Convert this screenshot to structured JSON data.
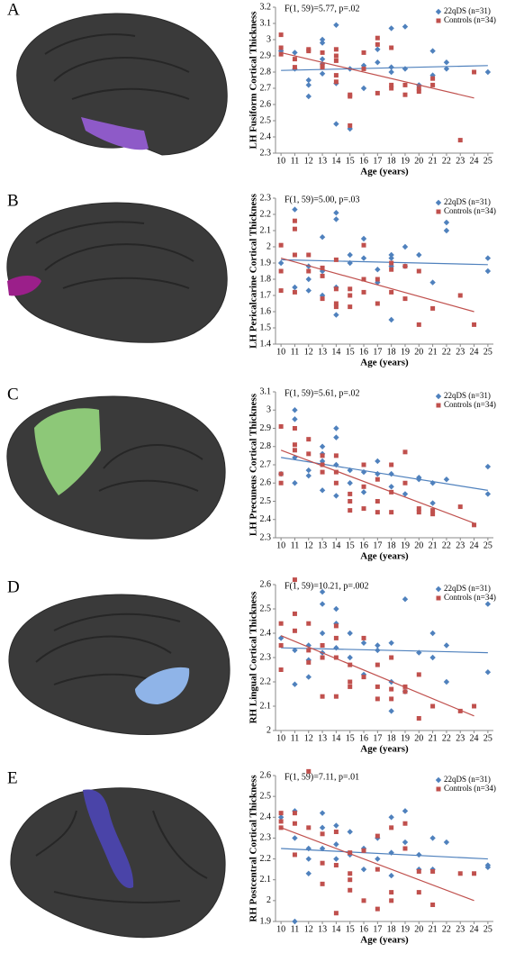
{
  "chart_data": [
    {
      "type": "scatter",
      "panel": "A",
      "annotation": "F(1, 59)=5.77, p=.02",
      "ylabel": "LH Fusiform Cortical Thickness",
      "xlabel": "Age (years)",
      "xlim": [
        9.6,
        25.4
      ],
      "xticks": [
        10,
        11,
        12,
        13,
        14,
        15,
        16,
        17,
        18,
        19,
        20,
        21,
        22,
        23,
        24,
        25
      ],
      "ylim": [
        2.3,
        3.2
      ],
      "yticks": [
        2.3,
        2.4,
        2.5,
        2.6,
        2.7,
        2.8,
        2.9,
        3,
        3.1,
        3.2
      ],
      "legend": "top-right",
      "series": [
        {
          "name": "22qDS (n=31)",
          "color": "#4f81bd",
          "marker": "diamond",
          "x": [
            10,
            11,
            11,
            12,
            12,
            12,
            13,
            13,
            13,
            13,
            14,
            14,
            14,
            15,
            15,
            16,
            16,
            17,
            17,
            18,
            18,
            18,
            19,
            19,
            20,
            21,
            21,
            22,
            22,
            25,
            13
          ],
          "values": [
            2.93,
            2.82,
            2.92,
            2.72,
            2.65,
            2.75,
            2.98,
            3.0,
            2.88,
            2.85,
            3.09,
            2.73,
            2.48,
            2.45,
            2.82,
            2.7,
            2.84,
            2.94,
            2.86,
            3.07,
            2.83,
            2.8,
            3.08,
            2.82,
            2.72,
            2.93,
            2.78,
            2.86,
            2.82,
            2.8,
            2.79
          ],
          "trend": {
            "x": [
              10,
              25
            ],
            "values": [
              2.81,
              2.84
            ]
          }
        },
        {
          "name": "Controls (n=34)",
          "color": "#c0504d",
          "marker": "square",
          "x": [
            10,
            10,
            10,
            11,
            11,
            12,
            12,
            13,
            13,
            13,
            14,
            14,
            14,
            14,
            15,
            15,
            15,
            16,
            16,
            17,
            17,
            17,
            18,
            18,
            18,
            19,
            19,
            20,
            20,
            21,
            21,
            23,
            24,
            14
          ],
          "values": [
            3.03,
            2.95,
            2.91,
            2.88,
            2.83,
            2.94,
            2.93,
            2.84,
            2.92,
            2.83,
            2.94,
            2.87,
            2.78,
            2.74,
            2.47,
            2.65,
            2.66,
            2.82,
            2.92,
            3.01,
            2.97,
            2.67,
            2.95,
            2.72,
            2.7,
            2.66,
            2.72,
            2.7,
            2.68,
            2.76,
            2.72,
            2.38,
            2.8,
            2.9
          ],
          "trend": {
            "x": [
              10,
              24
            ],
            "values": [
              2.92,
              2.64
            ]
          }
        }
      ]
    },
    {
      "type": "scatter",
      "panel": "B",
      "annotation": "F(1, 59)=5.00, p=.03",
      "ylabel": "LH Pericalcarine Cortical Thickness",
      "xlabel": "Age (years)",
      "xlim": [
        9.6,
        25.4
      ],
      "xticks": [
        10,
        11,
        12,
        13,
        14,
        15,
        16,
        17,
        18,
        19,
        20,
        21,
        22,
        23,
        24,
        25
      ],
      "ylim": [
        1.4,
        2.3
      ],
      "yticks": [
        1.4,
        1.5,
        1.6,
        1.7,
        1.8,
        1.9,
        2,
        2.1,
        2.2,
        2.3
      ],
      "legend": "top-right",
      "series": [
        {
          "name": "22qDS (n=31)",
          "color": "#4f81bd",
          "marker": "diamond",
          "x": [
            10,
            11,
            11,
            12,
            12,
            12,
            13,
            13,
            13,
            14,
            14,
            14,
            14,
            15,
            15,
            16,
            16,
            17,
            17,
            18,
            18,
            18,
            18,
            19,
            19,
            20,
            21,
            22,
            22,
            25,
            25
          ],
          "values": [
            1.9,
            2.23,
            1.75,
            1.88,
            1.8,
            1.73,
            2.06,
            1.85,
            1.7,
            2.21,
            2.17,
            1.58,
            1.75,
            1.95,
            1.9,
            2.05,
            1.93,
            1.86,
            1.78,
            1.95,
            1.93,
            1.55,
            1.88,
            2.0,
            1.88,
            1.95,
            1.78,
            2.15,
            2.1,
            1.93,
            1.85
          ],
          "trend": {
            "x": [
              10,
              25
            ],
            "values": [
              1.92,
              1.89
            ]
          }
        },
        {
          "name": "Controls (n=34)",
          "color": "#c0504d",
          "marker": "square",
          "x": [
            10,
            10,
            10,
            11,
            11,
            11,
            11,
            12,
            12,
            13,
            13,
            13,
            14,
            14,
            14,
            14,
            15,
            15,
            15,
            16,
            16,
            16,
            17,
            17,
            18,
            18,
            18,
            19,
            19,
            20,
            20,
            21,
            23,
            24
          ],
          "values": [
            2.01,
            1.85,
            1.73,
            2.16,
            2.11,
            1.95,
            1.72,
            1.95,
            1.85,
            1.87,
            1.82,
            1.68,
            1.92,
            1.65,
            1.63,
            1.74,
            1.74,
            1.7,
            1.63,
            2.01,
            1.8,
            1.72,
            1.8,
            1.65,
            1.9,
            1.86,
            1.72,
            1.88,
            1.68,
            1.85,
            1.52,
            1.62,
            1.7,
            1.52
          ],
          "trend": {
            "x": [
              10,
              24
            ],
            "values": [
              1.93,
              1.6
            ]
          }
        }
      ]
    },
    {
      "type": "scatter",
      "panel": "C",
      "annotation": "F(1, 59)=5.61, p=.02",
      "ylabel": "LH Precuneus Cortical Thickness",
      "xlabel": "Age (years)",
      "xlim": [
        9.6,
        25.4
      ],
      "xticks": [
        10,
        11,
        12,
        13,
        14,
        15,
        16,
        17,
        18,
        19,
        20,
        21,
        22,
        23,
        24,
        25
      ],
      "ylim": [
        2.3,
        3.1
      ],
      "yticks": [
        2.3,
        2.4,
        2.5,
        2.6,
        2.7,
        2.8,
        2.9,
        3,
        3.1
      ],
      "legend": "top-right",
      "series": [
        {
          "name": "22qDS (n=31)",
          "color": "#4f81bd",
          "marker": "diamond",
          "x": [
            10,
            11,
            11,
            11,
            11,
            12,
            12,
            13,
            13,
            13,
            14,
            14,
            14,
            14,
            15,
            15,
            16,
            16,
            17,
            17,
            18,
            18,
            19,
            20,
            20,
            21,
            21,
            22,
            25,
            25,
            13
          ],
          "values": [
            2.65,
            3.0,
            2.95,
            2.74,
            2.6,
            2.67,
            2.64,
            2.8,
            2.76,
            2.72,
            2.9,
            2.85,
            2.7,
            2.53,
            2.67,
            2.6,
            2.66,
            2.55,
            2.72,
            2.65,
            2.65,
            2.58,
            2.54,
            2.63,
            2.62,
            2.6,
            2.49,
            2.62,
            2.69,
            2.54,
            2.56
          ],
          "trend": {
            "x": [
              10,
              25
            ],
            "values": [
              2.74,
              2.56
            ]
          }
        },
        {
          "name": "Controls (n=34)",
          "color": "#c0504d",
          "marker": "square",
          "x": [
            10,
            10,
            10,
            11,
            11,
            11,
            12,
            12,
            13,
            13,
            13,
            14,
            14,
            14,
            15,
            15,
            15,
            16,
            16,
            17,
            17,
            17,
            18,
            18,
            18,
            19,
            19,
            20,
            20,
            21,
            21,
            23,
            24,
            16
          ],
          "values": [
            2.91,
            2.65,
            2.6,
            2.9,
            2.81,
            2.78,
            2.84,
            2.76,
            2.75,
            2.7,
            2.66,
            2.75,
            2.66,
            2.6,
            2.54,
            2.45,
            2.5,
            2.7,
            2.46,
            2.62,
            2.5,
            2.44,
            2.7,
            2.55,
            2.44,
            2.77,
            2.6,
            2.46,
            2.44,
            2.45,
            2.43,
            2.47,
            2.37,
            2.58
          ],
          "trend": {
            "x": [
              10,
              24
            ],
            "values": [
              2.78,
              2.38
            ]
          }
        }
      ]
    },
    {
      "type": "scatter",
      "panel": "D",
      "annotation": "F(1, 59)=10.21, p=.002",
      "ylabel": "RH Lingual Cortical Thickness",
      "xlabel": "Age (years)",
      "xlim": [
        9.6,
        25.4
      ],
      "xticks": [
        10,
        11,
        12,
        13,
        14,
        15,
        16,
        17,
        18,
        19,
        20,
        21,
        22,
        23,
        24,
        25
      ],
      "ylim": [
        2,
        2.6
      ],
      "yticks": [
        2,
        2.1,
        2.2,
        2.3,
        2.4,
        2.5,
        2.6
      ],
      "legend": "top-right",
      "series": [
        {
          "name": "22qDS (n=31)",
          "color": "#4f81bd",
          "marker": "diamond",
          "x": [
            10,
            11,
            11,
            12,
            12,
            12,
            13,
            13,
            13,
            13,
            14,
            14,
            14,
            15,
            15,
            16,
            16,
            17,
            17,
            18,
            18,
            18,
            19,
            19,
            20,
            21,
            21,
            22,
            22,
            25,
            25
          ],
          "values": [
            2.38,
            2.33,
            2.19,
            2.35,
            2.29,
            2.22,
            2.57,
            2.52,
            2.4,
            2.32,
            2.5,
            2.44,
            2.34,
            2.4,
            2.3,
            2.23,
            2.36,
            2.35,
            2.33,
            2.36,
            2.2,
            2.08,
            2.54,
            2.16,
            2.32,
            2.4,
            2.3,
            2.35,
            2.2,
            2.52,
            2.24
          ],
          "trend": {
            "x": [
              10,
              25
            ],
            "values": [
              2.34,
              2.32
            ]
          }
        },
        {
          "name": "Controls (n=34)",
          "color": "#c0504d",
          "marker": "square",
          "x": [
            10,
            10,
            10,
            11,
            11,
            11,
            12,
            12,
            12,
            13,
            13,
            13,
            14,
            14,
            14,
            14,
            15,
            15,
            15,
            16,
            16,
            17,
            17,
            17,
            18,
            18,
            18,
            19,
            19,
            20,
            20,
            21,
            23,
            24
          ],
          "values": [
            2.44,
            2.35,
            2.25,
            2.62,
            2.48,
            2.41,
            2.44,
            2.33,
            2.28,
            2.35,
            2.3,
            2.14,
            2.43,
            2.38,
            2.3,
            2.14,
            2.27,
            2.2,
            2.18,
            2.38,
            2.22,
            2.27,
            2.18,
            2.13,
            2.3,
            2.17,
            2.13,
            2.18,
            2.16,
            2.23,
            2.05,
            2.1,
            2.08,
            2.1
          ],
          "trend": {
            "x": [
              10,
              24
            ],
            "values": [
              2.39,
              2.06
            ]
          }
        }
      ]
    },
    {
      "type": "scatter",
      "panel": "E",
      "annotation": "F(1, 59)=7.11, p=.01",
      "ylabel": "RH Postcentral Cortical Thickness",
      "xlabel": "Age (years)",
      "xlim": [
        9.6,
        25.4
      ],
      "xticks": [
        10,
        11,
        12,
        13,
        14,
        15,
        16,
        17,
        18,
        19,
        20,
        21,
        22,
        23,
        24,
        25
      ],
      "ylim": [
        1.9,
        2.6
      ],
      "yticks": [
        1.9,
        2,
        2.1,
        2.2,
        2.3,
        2.4,
        2.5,
        2.6
      ],
      "legend": "top-right",
      "series": [
        {
          "name": "22qDS (n=31)",
          "color": "#4f81bd",
          "marker": "diamond",
          "x": [
            10,
            11,
            11,
            11,
            12,
            12,
            12,
            13,
            13,
            13,
            14,
            14,
            14,
            15,
            15,
            16,
            16,
            17,
            17,
            18,
            18,
            18,
            19,
            19,
            20,
            20,
            21,
            21,
            22,
            25,
            25
          ],
          "values": [
            2.4,
            2.43,
            1.9,
            2.3,
            2.25,
            2.2,
            2.13,
            2.42,
            2.35,
            2.25,
            2.36,
            2.27,
            2.2,
            2.33,
            2.22,
            2.25,
            2.15,
            2.3,
            2.2,
            2.4,
            2.23,
            2.12,
            2.43,
            2.28,
            2.22,
            2.15,
            2.3,
            2.15,
            2.28,
            2.17,
            2.16
          ],
          "trend": {
            "x": [
              10,
              25
            ],
            "values": [
              2.25,
              2.2
            ]
          }
        },
        {
          "name": "Controls (n=34)",
          "color": "#c0504d",
          "marker": "square",
          "x": [
            10,
            10,
            10,
            11,
            11,
            11,
            12,
            12,
            13,
            13,
            13,
            14,
            14,
            14,
            15,
            15,
            15,
            16,
            16,
            17,
            17,
            17,
            18,
            18,
            18,
            19,
            19,
            20,
            20,
            21,
            21,
            23,
            24,
            15
          ],
          "values": [
            2.42,
            2.38,
            2.35,
            2.42,
            2.37,
            2.22,
            2.62,
            2.35,
            2.32,
            2.18,
            2.08,
            2.33,
            2.17,
            1.94,
            2.23,
            2.13,
            2.05,
            2.24,
            2.0,
            2.31,
            2.15,
            1.96,
            2.35,
            2.04,
            2.0,
            2.37,
            2.25,
            2.14,
            2.04,
            2.14,
            1.98,
            2.13,
            2.13,
            2.1
          ],
          "trend": {
            "x": [
              10,
              24
            ],
            "values": [
              2.35,
              2.0
            ]
          }
        }
      ]
    }
  ]
}
